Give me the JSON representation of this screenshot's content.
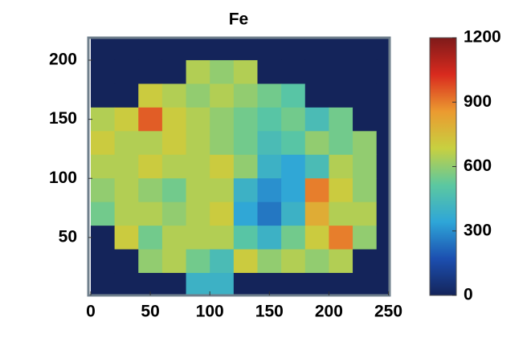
{
  "chart_data": {
    "type": "heatmap",
    "title": "Fe",
    "x": [
      10,
      30,
      50,
      70,
      90,
      110,
      130,
      150,
      170,
      190,
      210,
      230,
      250
    ],
    "y": [
      210,
      190,
      170,
      150,
      130,
      110,
      90,
      70,
      50,
      30,
      10
    ],
    "z": [
      [
        0,
        0,
        0,
        0,
        0,
        0,
        0,
        0,
        0,
        0,
        0,
        0,
        0
      ],
      [
        0,
        0,
        0,
        0,
        650,
        600,
        650,
        0,
        0,
        0,
        0,
        0,
        0
      ],
      [
        0,
        0,
        700,
        650,
        600,
        650,
        600,
        550,
        500,
        0,
        0,
        0,
        0
      ],
      [
        650,
        700,
        950,
        700,
        650,
        600,
        550,
        500,
        550,
        450,
        550,
        0,
        0
      ],
      [
        700,
        650,
        650,
        700,
        650,
        600,
        550,
        450,
        500,
        600,
        550,
        600,
        0
      ],
      [
        650,
        650,
        700,
        650,
        650,
        700,
        600,
        400,
        350,
        450,
        650,
        600,
        0
      ],
      [
        600,
        650,
        600,
        550,
        650,
        650,
        400,
        300,
        350,
        900,
        700,
        600,
        0
      ],
      [
        550,
        650,
        650,
        600,
        650,
        700,
        350,
        250,
        400,
        800,
        650,
        650,
        0
      ],
      [
        0,
        700,
        550,
        650,
        650,
        650,
        500,
        400,
        550,
        700,
        900,
        600,
        0
      ],
      [
        0,
        0,
        600,
        650,
        550,
        450,
        700,
        600,
        650,
        600,
        650,
        0,
        0
      ],
      [
        0,
        0,
        0,
        0,
        400,
        400,
        0,
        0,
        0,
        0,
        0,
        0,
        0
      ]
    ],
    "xlim": [
      -2,
      251
    ],
    "ylim": [
      1,
      219
    ],
    "xticks": [
      0,
      50,
      100,
      150,
      200,
      250
    ],
    "yticks": [
      50,
      100,
      150,
      200
    ],
    "clim": [
      0,
      1200
    ],
    "cticks": [
      0,
      300,
      600,
      900,
      1200
    ],
    "colormap": [
      "#14245a",
      "#1c4fb0",
      "#2ea6d8",
      "#5cc8a0",
      "#c8d040",
      "#eb9a30",
      "#d92a1e",
      "#7e1a1a"
    ]
  }
}
